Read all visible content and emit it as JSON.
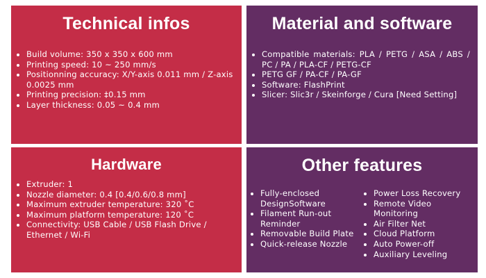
{
  "technical": {
    "title": "Technical infos",
    "items": [
      "Build volume: 350 x 350 x 600 mm",
      "Printing speed: 10 ~ 250 mm/s",
      "Positionning accuracy: X/Y-axis 0.011 mm / Z-axis 0.0025 mm",
      "Printing precision: ‡0.15 mm",
      "Layer thickness: 0.05 ~ 0.4 mm"
    ]
  },
  "material": {
    "title": "Material and software",
    "items": [
      "Compatible materials: PLA / PETG / ASA / ABS / PC / PA / PLA-CF / PETG-CF",
      "PETG GF / PA-CF / PA-GF",
      "Software: FlashPrint",
      "Slicer: Slic3r / Skeinforge / Cura [Need Setting]"
    ]
  },
  "hardware": {
    "title": "Hardware",
    "items": [
      "Extruder: 1",
      "Nozzle diameter: 0.4 [0.4/0.6/0.8 mm]",
      "Maximum extruder temperature: 320 ˚C",
      "Maximum platform temperature: 120 ˚C",
      "Connectivity: USB Cable / USB Flash Drive / Ethernet / Wi-Fi"
    ]
  },
  "features": {
    "title": "Other features",
    "col1": [
      "Fully-enclosed DesignSoftware",
      "Filament Run-out Reminder",
      "Removable Build Plate",
      "Quick-release Nozzle"
    ],
    "col2": [
      "Power Loss Recovery",
      "Remote Video Monitoring",
      "Air Filter Net",
      "Cloud Platform",
      "Auto Power-off",
      "Auxiliary Leveling"
    ]
  },
  "colors": {
    "red": "#c42d47",
    "purple": "#632d63"
  }
}
